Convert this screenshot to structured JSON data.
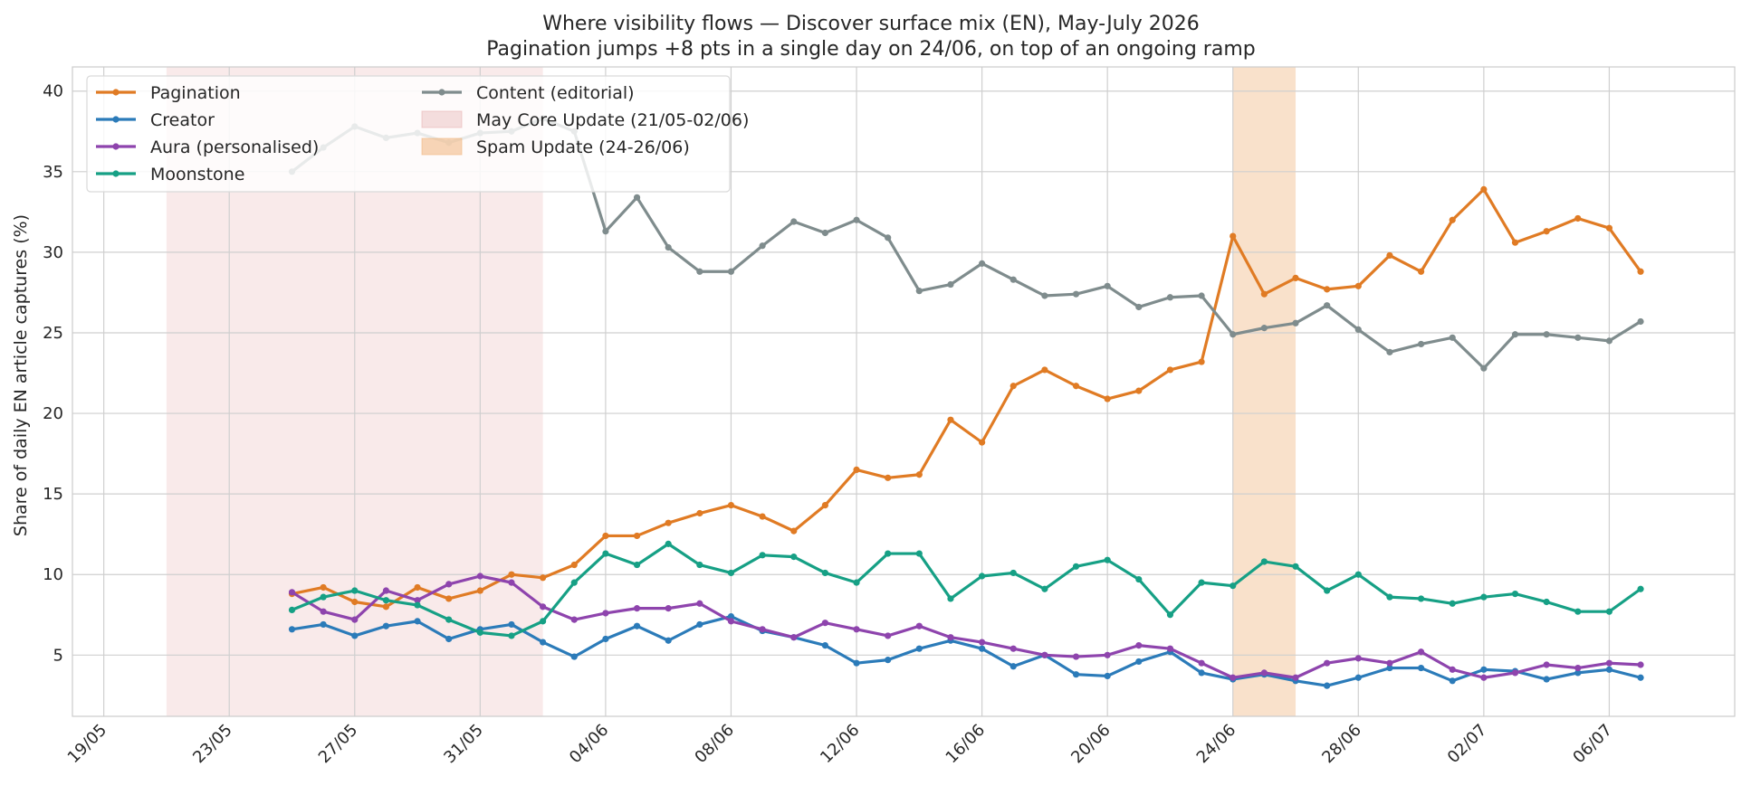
{
  "chart_data": {
    "type": "line",
    "title": "Where visibility flows — Discover surface mix (EN), May-July 2026",
    "subtitle": "Pagination jumps +8 pts in a single day on 24/06, on top of an ongoing ramp",
    "xlabel": "",
    "ylabel": "Share of daily EN article captures (%)",
    "xlim": [
      "2026-05-18",
      "2026-07-10"
    ],
    "ylim": [
      1.2,
      41.5
    ],
    "yticks": [
      5,
      10,
      15,
      20,
      25,
      30,
      35,
      40
    ],
    "xticks": [
      {
        "date": "2026-05-19",
        "label": "19/05"
      },
      {
        "date": "2026-05-23",
        "label": "23/05"
      },
      {
        "date": "2026-05-27",
        "label": "27/05"
      },
      {
        "date": "2026-05-31",
        "label": "31/05"
      },
      {
        "date": "2026-06-04",
        "label": "04/06"
      },
      {
        "date": "2026-06-08",
        "label": "08/06"
      },
      {
        "date": "2026-06-12",
        "label": "12/06"
      },
      {
        "date": "2026-06-16",
        "label": "16/06"
      },
      {
        "date": "2026-06-20",
        "label": "20/06"
      },
      {
        "date": "2026-06-24",
        "label": "24/06"
      },
      {
        "date": "2026-06-28",
        "label": "28/06"
      },
      {
        "date": "2026-07-02",
        "label": "02/07"
      },
      {
        "date": "2026-07-06",
        "label": "06/07"
      }
    ],
    "grid": true,
    "legend_position": "top-left",
    "shaded_regions": [
      {
        "name": "May Core Update (21/05-02/06)",
        "start": "2026-05-21",
        "end": "2026-06-02",
        "color": "#e8b4b4",
        "opacity": 0.28
      },
      {
        "name": "Spam Update (24-26/06)",
        "start": "2026-06-24",
        "end": "2026-06-26",
        "color": "#f0b57e",
        "opacity": 0.4
      }
    ],
    "x": [
      "2026-05-25",
      "2026-05-26",
      "2026-05-27",
      "2026-05-28",
      "2026-05-29",
      "2026-05-30",
      "2026-05-31",
      "2026-06-01",
      "2026-06-02",
      "2026-06-03",
      "2026-06-04",
      "2026-06-05",
      "2026-06-06",
      "2026-06-07",
      "2026-06-08",
      "2026-06-09",
      "2026-06-10",
      "2026-06-11",
      "2026-06-12",
      "2026-06-13",
      "2026-06-14",
      "2026-06-15",
      "2026-06-16",
      "2026-06-17",
      "2026-06-18",
      "2026-06-19",
      "2026-06-20",
      "2026-06-21",
      "2026-06-22",
      "2026-06-23",
      "2026-06-24",
      "2026-06-25",
      "2026-06-26",
      "2026-06-27",
      "2026-06-28",
      "2026-06-29",
      "2026-06-30",
      "2026-07-01",
      "2026-07-02",
      "2026-07-03",
      "2026-07-04",
      "2026-07-05",
      "2026-07-06",
      "2026-07-07"
    ],
    "series": [
      {
        "name": "Pagination",
        "color": "#e07b24",
        "values": [
          8.8,
          9.2,
          8.3,
          8.0,
          9.2,
          8.5,
          9.0,
          10.0,
          9.8,
          10.6,
          12.4,
          12.4,
          13.2,
          13.8,
          14.3,
          13.6,
          12.7,
          14.3,
          16.5,
          16.0,
          16.2,
          19.6,
          18.2,
          21.7,
          22.7,
          21.7,
          20.9,
          21.4,
          22.7,
          23.2,
          31.0,
          27.4,
          28.4,
          27.7,
          27.9,
          29.8,
          28.8,
          32.0,
          33.9,
          30.6,
          31.3,
          32.1,
          31.5,
          28.8
        ]
      },
      {
        "name": "Creator",
        "color": "#2b7bb9",
        "values": [
          6.6,
          6.9,
          6.2,
          6.8,
          7.1,
          6.0,
          6.6,
          6.9,
          5.8,
          4.9,
          6.0,
          6.8,
          5.9,
          6.9,
          7.4,
          6.5,
          6.1,
          5.6,
          4.5,
          4.7,
          5.4,
          5.9,
          5.4,
          4.3,
          5.0,
          3.8,
          3.7,
          4.6,
          5.2,
          3.9,
          3.5,
          3.8,
          3.4,
          3.1,
          3.6,
          4.2,
          4.2,
          3.4,
          4.1,
          4.0,
          3.5,
          3.9,
          4.1,
          3.6
        ]
      },
      {
        "name": "Aura (personalised)",
        "color": "#8e44ad",
        "values": [
          8.9,
          7.7,
          7.2,
          9.0,
          8.4,
          9.4,
          9.9,
          9.5,
          8.0,
          7.2,
          7.6,
          7.9,
          7.9,
          8.2,
          7.1,
          6.6,
          6.1,
          7.0,
          6.6,
          6.2,
          6.8,
          6.1,
          5.8,
          5.4,
          5.0,
          4.9,
          5.0,
          5.6,
          5.4,
          4.5,
          3.6,
          3.9,
          3.6,
          4.5,
          4.8,
          4.5,
          5.2,
          4.1,
          3.6,
          3.9,
          4.4,
          4.2,
          4.5,
          4.4
        ]
      },
      {
        "name": "Moonstone",
        "color": "#16a085",
        "values": [
          7.8,
          8.6,
          9.0,
          8.4,
          8.1,
          7.2,
          6.4,
          6.2,
          7.1,
          9.5,
          11.3,
          10.6,
          11.9,
          10.6,
          10.1,
          11.2,
          11.1,
          10.1,
          9.5,
          11.3,
          11.3,
          8.5,
          9.9,
          10.1,
          9.1,
          10.5,
          10.9,
          9.7,
          7.5,
          9.5,
          9.3,
          10.8,
          10.5,
          9.0,
          10.0,
          8.6,
          8.5,
          8.2,
          8.6,
          8.8,
          8.3,
          7.7,
          7.7,
          9.1
        ]
      },
      {
        "name": "Content (editorial)",
        "color": "#7f8c8d",
        "values": [
          35.0,
          36.5,
          37.8,
          37.1,
          37.4,
          36.8,
          37.4,
          37.5,
          38.3,
          37.5,
          31.3,
          33.4,
          30.3,
          28.8,
          28.8,
          30.4,
          31.9,
          31.2,
          32.0,
          30.9,
          27.6,
          28.0,
          29.3,
          28.3,
          27.3,
          27.4,
          27.9,
          26.6,
          27.2,
          27.3,
          24.9,
          25.3,
          25.6,
          26.7,
          25.2,
          23.8,
          24.3,
          24.7,
          22.8,
          24.9,
          24.9,
          24.7,
          24.5,
          25.7
        ]
      }
    ]
  }
}
